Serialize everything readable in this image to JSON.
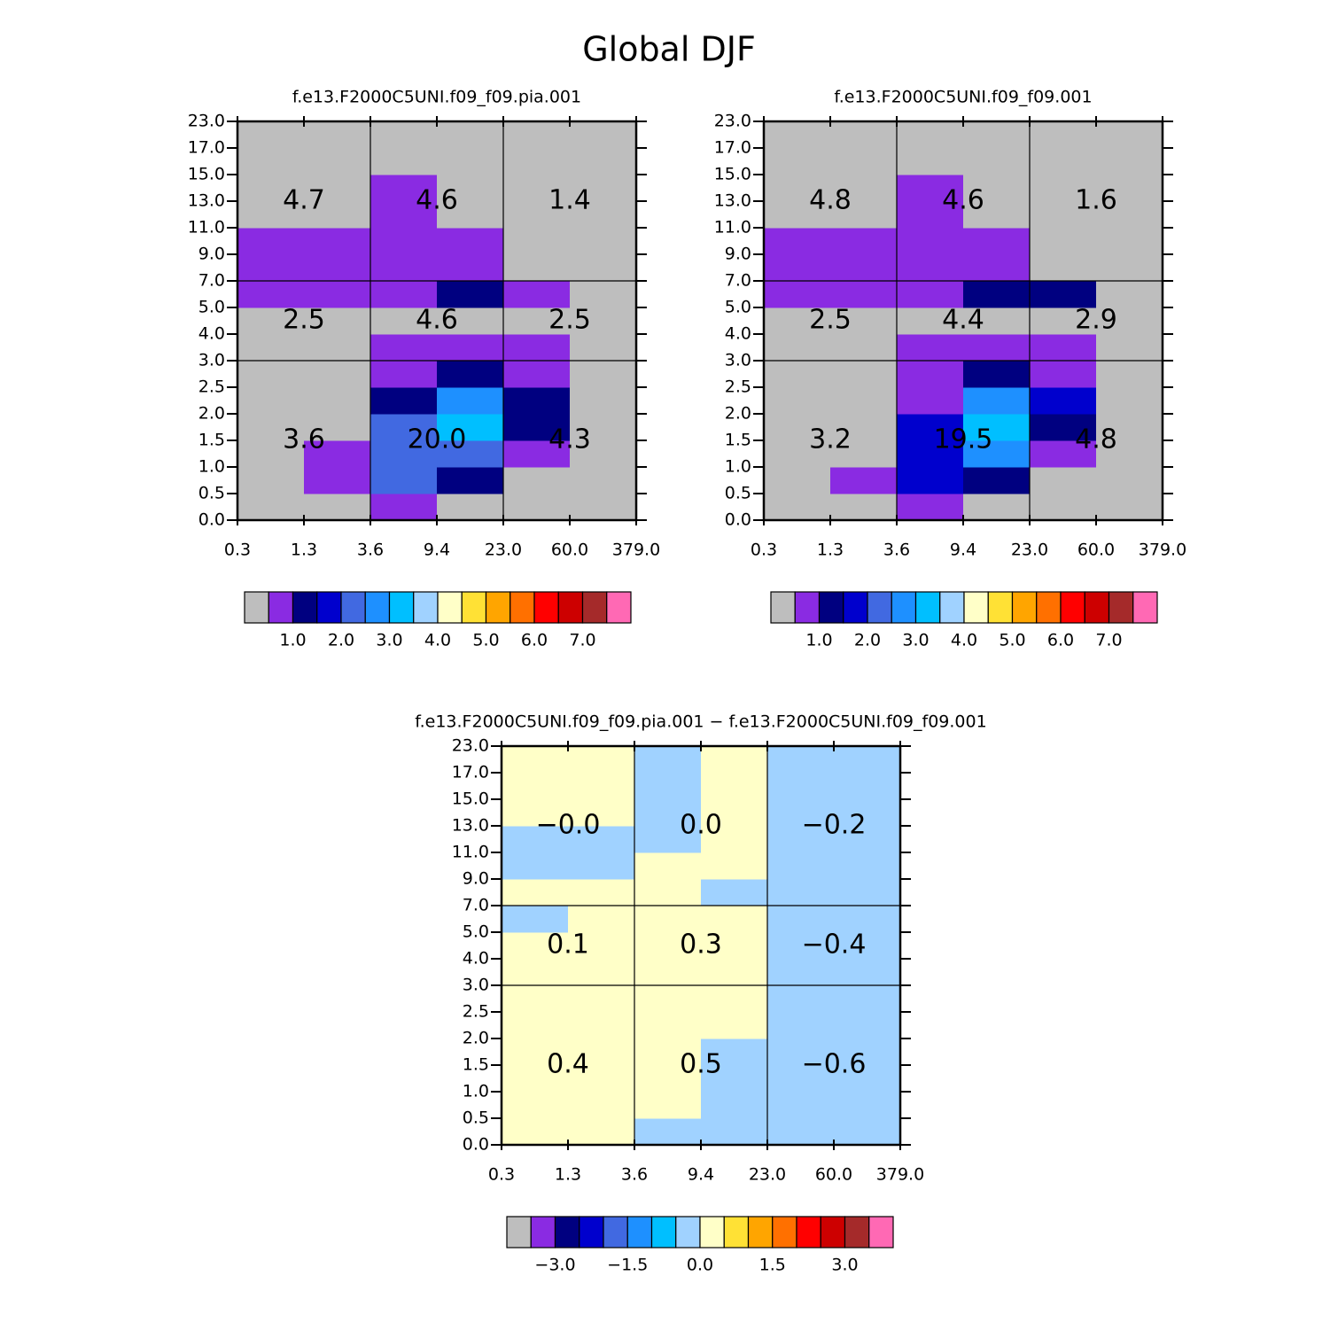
{
  "title": "Global DJF",
  "chart_data": [
    {
      "type": "heatmap",
      "title": "f.e13.F2000C5UNI.f09_f09.pia.001",
      "x_edges": [
        0.3,
        1.3,
        3.6,
        9.4,
        {
          "value": 23,
          "label": "23.0"
        },
        {
          "value": 60,
          "label": "60.0"
        },
        {
          "value": 379,
          "label": "379.0"
        }
      ],
      "y_edges": [
        {
          "value": 0,
          "label": "0.0"
        },
        0.5,
        {
          "value": 1,
          "label": "1.0"
        },
        1.5,
        {
          "value": 2,
          "label": "2.0"
        },
        2.5,
        {
          "value": 3,
          "label": "3.0"
        },
        {
          "value": 4,
          "label": "4.0"
        },
        {
          "value": 5,
          "label": "5.0"
        },
        {
          "value": 7,
          "label": "7.0"
        },
        {
          "value": 9,
          "label": "9.0"
        },
        {
          "value": 11,
          "label": "11.0"
        },
        {
          "value": 13,
          "label": "13.0"
        },
        {
          "value": 15,
          "label": "15.0"
        },
        {
          "value": 17,
          "label": "17.0"
        },
        {
          "value": 23,
          "label": "23.0"
        }
      ],
      "z": [
        [
          0.2,
          0.2,
          0.8,
          0.2,
          0.2,
          0.2
        ],
        [
          0.2,
          0.8,
          2.2,
          1.2,
          0.2,
          0.2
        ],
        [
          0.2,
          0.8,
          2.2,
          2.2,
          0.8,
          0.2
        ],
        [
          0.2,
          0.2,
          2.2,
          3.2,
          1.2,
          0.2
        ],
        [
          0.2,
          0.2,
          1.2,
          2.7,
          1.2,
          0.2
        ],
        [
          0.2,
          0.2,
          0.8,
          1.2,
          0.8,
          0.2
        ],
        [
          0.2,
          0.2,
          0.8,
          0.8,
          0.8,
          0.2
        ],
        [
          0.2,
          0.2,
          0.2,
          0.2,
          0.2,
          0.2
        ],
        [
          0.8,
          0.8,
          0.8,
          1.2,
          0.8,
          0.2
        ],
        [
          0.8,
          0.8,
          0.8,
          0.8,
          0.2,
          0.2
        ],
        [
          0.8,
          0.8,
          0.8,
          0.8,
          0.2,
          0.2
        ],
        [
          0.2,
          0.2,
          0.8,
          0.2,
          0.2,
          0.2
        ],
        [
          0.2,
          0.2,
          0.8,
          0.2,
          0.2,
          0.2
        ],
        [
          0.2,
          0.2,
          0.2,
          0.2,
          0.2,
          0.2
        ],
        [
          0.2,
          0.2,
          0.2,
          0.2,
          0.2,
          0.2
        ]
      ],
      "divisions_x": [
        3.6,
        23
      ],
      "divisions_y": [
        3,
        7
      ],
      "overlay_values": [
        [
          3.6,
          20.0,
          4.3
        ],
        [
          2.5,
          4.6,
          2.5
        ],
        [
          4.7,
          4.6,
          1.4
        ]
      ],
      "overlay_labels": [
        [
          "3.6",
          "20.0",
          "4.3"
        ],
        [
          "2.5",
          "4.6",
          "2.5"
        ],
        [
          "4.7",
          "4.6",
          "1.4"
        ]
      ],
      "colorbar": {
        "levels": [
          0.5,
          1,
          1.5,
          2,
          2.5,
          3,
          3.5,
          4,
          4.5,
          5,
          5.5,
          6,
          6.5,
          7,
          7.5
        ],
        "colors": [
          "#BEBEBE",
          "#8A2BE2",
          "#000080",
          "#0000CD",
          "#4169E1",
          "#1E90FF",
          "#00BFFF",
          "#A0D2FF",
          "#FFFFC8",
          "#FFE135",
          "#FFA500",
          "#FF7000",
          "#FF0000",
          "#CD0000",
          "#A52A2A",
          "#FF69B4"
        ],
        "ticks": [
          {
            "value": 1,
            "label": "1.0"
          },
          {
            "value": 2,
            "label": "2.0"
          },
          {
            "value": 3,
            "label": "3.0"
          },
          {
            "value": 4,
            "label": "4.0"
          },
          {
            "value": 5,
            "label": "5.0"
          },
          {
            "value": 6,
            "label": "6.0"
          },
          {
            "value": 7,
            "label": "7.0"
          }
        ]
      }
    },
    {
      "type": "heatmap",
      "title": "f.e13.F2000C5UNI.f09_f09.001",
      "x_edges": [
        0.3,
        1.3,
        3.6,
        9.4,
        {
          "value": 23,
          "label": "23.0"
        },
        {
          "value": 60,
          "label": "60.0"
        },
        {
          "value": 379,
          "label": "379.0"
        }
      ],
      "y_edges": [
        {
          "value": 0,
          "label": "0.0"
        },
        0.5,
        {
          "value": 1,
          "label": "1.0"
        },
        1.5,
        {
          "value": 2,
          "label": "2.0"
        },
        2.5,
        {
          "value": 3,
          "label": "3.0"
        },
        {
          "value": 4,
          "label": "4.0"
        },
        {
          "value": 5,
          "label": "5.0"
        },
        {
          "value": 7,
          "label": "7.0"
        },
        {
          "value": 9,
          "label": "9.0"
        },
        {
          "value": 11,
          "label": "11.0"
        },
        {
          "value": 13,
          "label": "13.0"
        },
        {
          "value": 15,
          "label": "15.0"
        },
        {
          "value": 17,
          "label": "17.0"
        },
        {
          "value": 23,
          "label": "23.0"
        }
      ],
      "z": [
        [
          0.2,
          0.2,
          0.8,
          0.2,
          0.2,
          0.2
        ],
        [
          0.2,
          0.8,
          1.7,
          1.2,
          0.2,
          0.2
        ],
        [
          0.2,
          0.2,
          1.7,
          2.7,
          0.8,
          0.2
        ],
        [
          0.2,
          0.2,
          1.7,
          3.2,
          1.2,
          0.2
        ],
        [
          0.2,
          0.2,
          0.8,
          2.7,
          1.7,
          0.2
        ],
        [
          0.2,
          0.2,
          0.8,
          1.2,
          0.8,
          0.2
        ],
        [
          0.2,
          0.2,
          0.8,
          0.8,
          0.8,
          0.2
        ],
        [
          0.2,
          0.2,
          0.2,
          0.2,
          0.2,
          0.2
        ],
        [
          0.8,
          0.8,
          0.8,
          1.2,
          1.2,
          0.2
        ],
        [
          0.8,
          0.8,
          0.8,
          0.8,
          0.2,
          0.2
        ],
        [
          0.8,
          0.8,
          0.8,
          0.8,
          0.2,
          0.2
        ],
        [
          0.2,
          0.2,
          0.8,
          0.2,
          0.2,
          0.2
        ],
        [
          0.2,
          0.2,
          0.8,
          0.2,
          0.2,
          0.2
        ],
        [
          0.2,
          0.2,
          0.2,
          0.2,
          0.2,
          0.2
        ],
        [
          0.2,
          0.2,
          0.2,
          0.2,
          0.2,
          0.2
        ]
      ],
      "divisions_x": [
        3.6,
        23
      ],
      "divisions_y": [
        3,
        7
      ],
      "overlay_values": [
        [
          3.2,
          19.5,
          4.8
        ],
        [
          2.5,
          4.4,
          2.9
        ],
        [
          4.8,
          4.6,
          1.6
        ]
      ],
      "overlay_labels": [
        [
          "3.2",
          "19.5",
          "4.8"
        ],
        [
          "2.5",
          "4.4",
          "2.9"
        ],
        [
          "4.8",
          "4.6",
          "1.6"
        ]
      ],
      "colorbar": {
        "levels": [
          0.5,
          1,
          1.5,
          2,
          2.5,
          3,
          3.5,
          4,
          4.5,
          5,
          5.5,
          6,
          6.5,
          7,
          7.5
        ],
        "colors": [
          "#BEBEBE",
          "#8A2BE2",
          "#000080",
          "#0000CD",
          "#4169E1",
          "#1E90FF",
          "#00BFFF",
          "#A0D2FF",
          "#FFFFC8",
          "#FFE135",
          "#FFA500",
          "#FF7000",
          "#FF0000",
          "#CD0000",
          "#A52A2A",
          "#FF69B4"
        ],
        "ticks": [
          {
            "value": 1,
            "label": "1.0"
          },
          {
            "value": 2,
            "label": "2.0"
          },
          {
            "value": 3,
            "label": "3.0"
          },
          {
            "value": 4,
            "label": "4.0"
          },
          {
            "value": 5,
            "label": "5.0"
          },
          {
            "value": 6,
            "label": "6.0"
          },
          {
            "value": 7,
            "label": "7.0"
          }
        ]
      }
    },
    {
      "type": "heatmap",
      "title": "f.e13.F2000C5UNI.f09_f09.pia.001 − f.e13.F2000C5UNI.f09_f09.001",
      "x_edges": [
        0.3,
        1.3,
        3.6,
        9.4,
        {
          "value": 23,
          "label": "23.0"
        },
        {
          "value": 60,
          "label": "60.0"
        },
        {
          "value": 379,
          "label": "379.0"
        }
      ],
      "y_edges": [
        {
          "value": 0,
          "label": "0.0"
        },
        0.5,
        {
          "value": 1,
          "label": "1.0"
        },
        1.5,
        {
          "value": 2,
          "label": "2.0"
        },
        2.5,
        {
          "value": 3,
          "label": "3.0"
        },
        {
          "value": 4,
          "label": "4.0"
        },
        {
          "value": 5,
          "label": "5.0"
        },
        {
          "value": 7,
          "label": "7.0"
        },
        {
          "value": 9,
          "label": "9.0"
        },
        {
          "value": 11,
          "label": "11.0"
        },
        {
          "value": 13,
          "label": "13.0"
        },
        {
          "value": 15,
          "label": "15.0"
        },
        {
          "value": 17,
          "label": "17.0"
        },
        {
          "value": 23,
          "label": "23.0"
        }
      ],
      "z": [
        [
          0.2,
          0.2,
          -0.2,
          -0.2,
          -0.2,
          -0.2
        ],
        [
          0.2,
          0.2,
          0.2,
          -0.2,
          -0.2,
          -0.2
        ],
        [
          0.2,
          0.2,
          0.2,
          -0.2,
          -0.2,
          -0.2
        ],
        [
          0.2,
          0.2,
          0.2,
          -0.2,
          -0.2,
          -0.2
        ],
        [
          0.2,
          0.2,
          0.2,
          0.2,
          -0.2,
          -0.2
        ],
        [
          0.2,
          0.2,
          0.2,
          0.2,
          -0.2,
          -0.2
        ],
        [
          0.2,
          0.2,
          0.2,
          0.2,
          -0.2,
          -0.2
        ],
        [
          0.2,
          0.2,
          0.2,
          0.2,
          -0.2,
          -0.2
        ],
        [
          -0.2,
          0.2,
          0.2,
          0.2,
          -0.2,
          -0.2
        ],
        [
          0.2,
          0.2,
          0.2,
          -0.2,
          -0.2,
          -0.2
        ],
        [
          -0.2,
          -0.2,
          0.2,
          0.2,
          -0.2,
          -0.2
        ],
        [
          -0.2,
          -0.2,
          -0.2,
          0.2,
          -0.2,
          -0.2
        ],
        [
          0.2,
          0.2,
          -0.2,
          0.2,
          -0.2,
          -0.2
        ],
        [
          0.2,
          0.2,
          -0.2,
          0.2,
          -0.2,
          -0.2
        ],
        [
          0.2,
          0.2,
          -0.2,
          0.2,
          -0.2,
          -0.2
        ]
      ],
      "divisions_x": [
        3.6,
        23
      ],
      "divisions_y": [
        3,
        7
      ],
      "overlay_values": [
        [
          0.4,
          0.5,
          -0.6
        ],
        [
          0.1,
          0.3,
          -0.4
        ],
        [
          -0.0,
          0.0,
          -0.2
        ]
      ],
      "overlay_labels": [
        [
          "0.4",
          "0.5",
          "−0.6"
        ],
        [
          "0.1",
          "0.3",
          "−0.4"
        ],
        [
          "−0.0",
          "0.0",
          "−0.2"
        ]
      ],
      "colorbar": {
        "levels": [
          -3.5,
          -3,
          -2.5,
          -2,
          -1.5,
          -1,
          -0.5,
          0,
          0.5,
          1,
          1.5,
          2,
          2.5,
          3,
          3.5
        ],
        "colors": [
          "#BEBEBE",
          "#8A2BE2",
          "#000080",
          "#0000CD",
          "#4169E1",
          "#1E90FF",
          "#00BFFF",
          "#A0D2FF",
          "#FFFFC8",
          "#FFE135",
          "#FFA500",
          "#FF7000",
          "#FF0000",
          "#CD0000",
          "#A52A2A",
          "#FF69B4"
        ],
        "ticks": [
          {
            "value": -3,
            "label": "−3.0"
          },
          {
            "value": -1.5,
            "label": "−1.5"
          },
          {
            "value": 0,
            "label": "0.0"
          },
          {
            "value": 1.5,
            "label": "1.5"
          },
          {
            "value": 3,
            "label": "3.0"
          }
        ]
      }
    }
  ]
}
